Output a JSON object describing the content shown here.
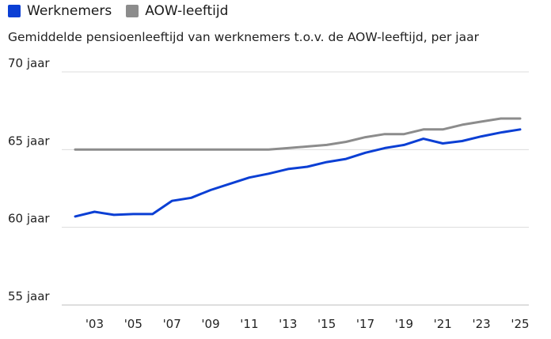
{
  "chart_data": {
    "type": "line",
    "title": "Gemiddelde pensioenleeftijd van werknemers t.o.v. de AOW-leeftijd, per jaar",
    "xlabel": "",
    "ylabel": "",
    "ylim": [
      55,
      70
    ],
    "xlim": [
      2002,
      2025
    ],
    "grid": true,
    "legend_position": "top-left",
    "y_ticks": [
      {
        "value": 70,
        "label": "70 jaar"
      },
      {
        "value": 65,
        "label": "65 jaar"
      },
      {
        "value": 60,
        "label": "60 jaar"
      },
      {
        "value": 55,
        "label": "55 jaar"
      }
    ],
    "x_ticks": [
      {
        "value": 2003,
        "label": "'03"
      },
      {
        "value": 2005,
        "label": "'05"
      },
      {
        "value": 2007,
        "label": "'07"
      },
      {
        "value": 2009,
        "label": "'09"
      },
      {
        "value": 2011,
        "label": "'11"
      },
      {
        "value": 2013,
        "label": "'13"
      },
      {
        "value": 2015,
        "label": "'15"
      },
      {
        "value": 2017,
        "label": "'17"
      },
      {
        "value": 2019,
        "label": "'19"
      },
      {
        "value": 2021,
        "label": "'21"
      },
      {
        "value": 2023,
        "label": "'23"
      },
      {
        "value": 2025,
        "label": "'25"
      }
    ],
    "x": [
      2002,
      2003,
      2004,
      2005,
      2006,
      2007,
      2008,
      2009,
      2010,
      2011,
      2012,
      2013,
      2014,
      2015,
      2016,
      2017,
      2018,
      2019,
      2020,
      2021,
      2022,
      2023,
      2024,
      2025
    ],
    "series": [
      {
        "name": "Werknemers",
        "color": "#0b3fd4",
        "values": [
          60.7,
          61.0,
          60.8,
          60.85,
          60.85,
          61.7,
          61.9,
          62.4,
          62.8,
          63.2,
          63.45,
          63.75,
          63.9,
          64.2,
          64.4,
          64.8,
          65.1,
          65.3,
          65.7,
          65.4,
          65.55,
          65.85,
          66.1,
          66.3
        ]
      },
      {
        "name": "AOW-leeftijd",
        "color": "#8c8c8c",
        "values": [
          65,
          65,
          65,
          65,
          65,
          65,
          65,
          65,
          65,
          65,
          65,
          65.1,
          65.2,
          65.3,
          65.5,
          65.8,
          66.0,
          66.0,
          66.3,
          66.3,
          66.6,
          66.8,
          67.0,
          67.0
        ]
      }
    ]
  }
}
